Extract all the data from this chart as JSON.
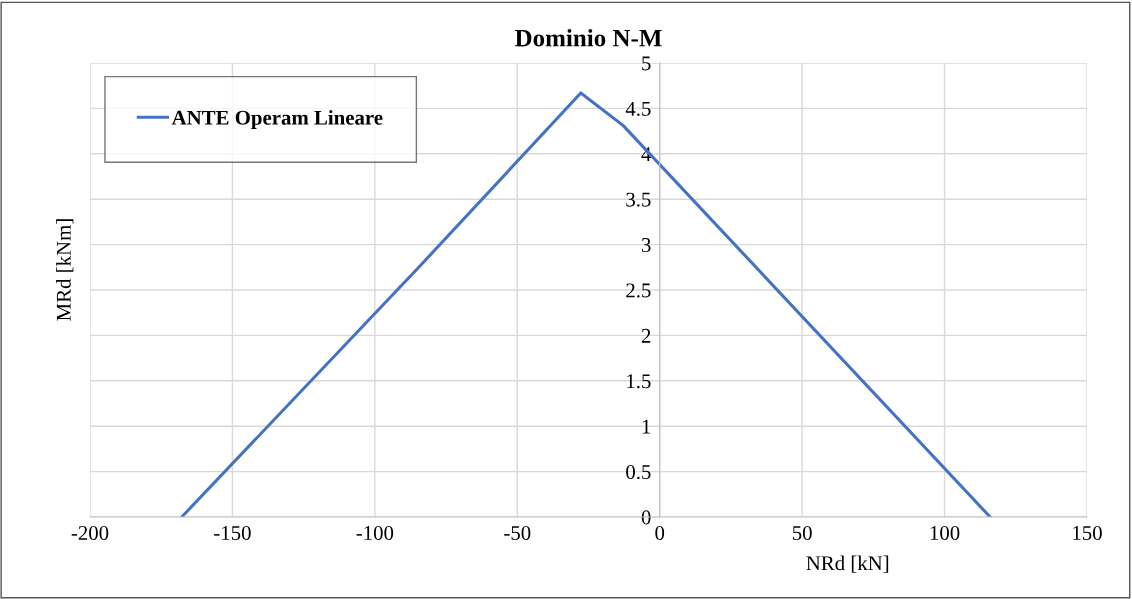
{
  "chart_data": {
    "type": "line",
    "title": "Dominio N-M",
    "xlabel": "NRd [kN]",
    "ylabel": "MRd [kNm]",
    "series": [
      {
        "name": "ANTE Operam Lineare",
        "color": "#4472c4",
        "x": [
          -167.8,
          -84.0,
          -27.7,
          -12.8,
          116.0
        ],
        "values": [
          0,
          2.77,
          4.67,
          4.31,
          0
        ]
      }
    ],
    "xlim": [
      -200,
      150
    ],
    "xticks": [
      -200,
      -150,
      -100,
      -50,
      0,
      50,
      100,
      150
    ],
    "ylim": [
      0,
      5
    ],
    "yticks": [
      0,
      0.5,
      1,
      1.5,
      2,
      2.5,
      3,
      3.5,
      4,
      4.5,
      5
    ],
    "grid": true,
    "legend": "top left",
    "marker": "none",
    "line_style": "solid"
  }
}
